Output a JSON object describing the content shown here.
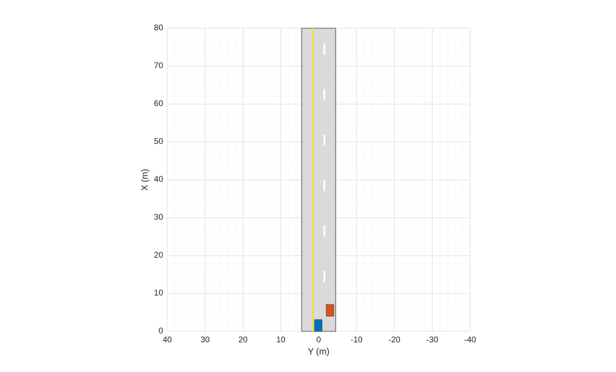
{
  "chart_data": {
    "type": "scenario",
    "xlabel": "Y (m)",
    "ylabel": "X (m)",
    "xlim": [
      40,
      -40
    ],
    "xticks": [
      40,
      30,
      20,
      10,
      0,
      -10,
      -20,
      -30,
      -40
    ],
    "ylim": [
      0,
      80
    ],
    "yticks": [
      0,
      10,
      20,
      30,
      40,
      50,
      60,
      70,
      80
    ],
    "grid": true,
    "road": {
      "y_edges": [
        4.5,
        -4.5
      ],
      "x_range": [
        0,
        80
      ],
      "color": "#d3d3d3",
      "center_line": {
        "y": 1.5,
        "color": "#f5d75a"
      },
      "dashed_line": {
        "y": -1.5,
        "color": "#ffffff",
        "dashes": [
          [
            13,
            16
          ],
          [
            25,
            28
          ],
          [
            37,
            40
          ],
          [
            49,
            52
          ],
          [
            61,
            64
          ],
          [
            73,
            76
          ]
        ]
      }
    },
    "vehicles": [
      {
        "color": "#0072bd",
        "x": [
          0,
          3.1
        ],
        "y": [
          1.1,
          -0.9
        ]
      },
      {
        "color": "#d95319",
        "x": [
          4,
          7.1
        ],
        "y": [
          -2,
          -4
        ]
      }
    ]
  }
}
